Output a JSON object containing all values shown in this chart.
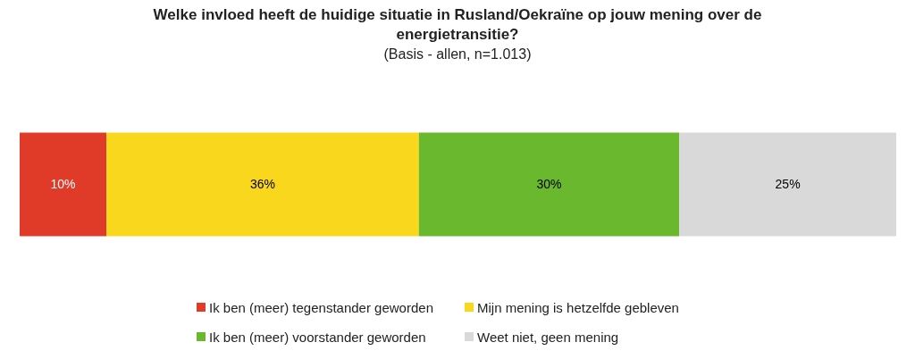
{
  "chart_data": {
    "type": "bar",
    "title": "Welke invloed heeft de huidige situatie in Rusland/Oekraïne op jouw mening over de energietransitie?",
    "subtitle": "(Basis - allen,  n=1.013)",
    "orientation": "horizontal",
    "stacked": true,
    "categories": [
      null
    ],
    "xlim": [
      0,
      101
    ],
    "tick_labels": false,
    "legend": "bottom",
    "series": [
      {
        "name": "Ik ben (meer) tegenstander geworden",
        "color": "#e03a28",
        "values": [
          10
        ],
        "value_labels": [
          "10%"
        ]
      },
      {
        "name": "Mijn mening  is hetzelfde gebleven",
        "color": "#f9d71c",
        "values": [
          36
        ],
        "value_labels": [
          "36%"
        ]
      },
      {
        "name": "Ik ben (meer) voorstander geworden",
        "color": "#6ab82e",
        "values": [
          30
        ],
        "value_labels": [
          "30%"
        ]
      },
      {
        "name": "Weet niet, geen mening",
        "color": "#d9d9d9",
        "values": [
          25
        ],
        "value_labels": [
          "25%"
        ]
      }
    ]
  }
}
